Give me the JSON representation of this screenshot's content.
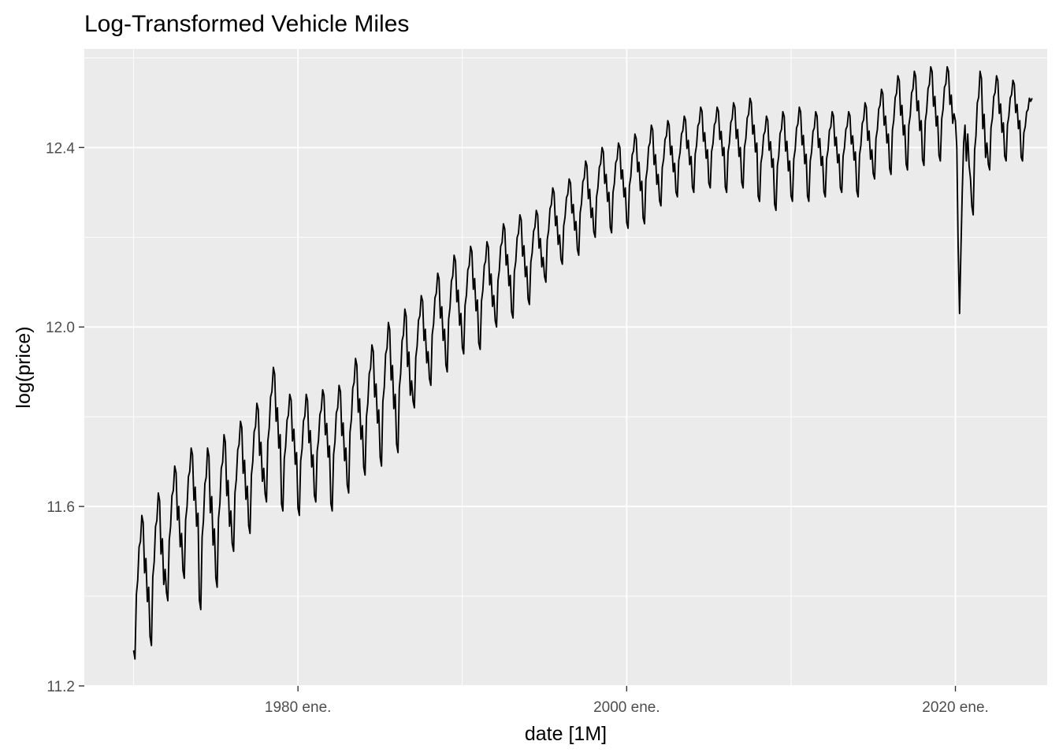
{
  "chart_data": {
    "type": "line",
    "title": "Log-Transformed Vehicle Miles",
    "xlabel": "date [1M]",
    "ylabel": "log(price)",
    "x_tick_labels": [
      "1980 ene.",
      "2000 ene.",
      "2020 ene."
    ],
    "x_tick_years": [
      1980,
      2000,
      2020
    ],
    "y_ticks": [
      11.2,
      11.6,
      12.0,
      12.4
    ],
    "y_tick_labels": [
      "11.2",
      "11.6",
      "12.0",
      "12.4"
    ],
    "xlim": [
      "1967-01",
      "2025-08"
    ],
    "ylim": [
      11.2,
      12.62
    ],
    "grid": true,
    "background": "#ebebeb",
    "line_color": "#000000",
    "series": [
      {
        "x_start": "1970-01",
        "frequency": "monthly",
        "annual_peak": [
          [
            1970,
            11.58
          ],
          [
            1971,
            11.63
          ],
          [
            1972,
            11.69
          ],
          [
            1973,
            11.73
          ],
          [
            1974,
            11.73
          ],
          [
            1975,
            11.76
          ],
          [
            1976,
            11.79
          ],
          [
            1977,
            11.83
          ],
          [
            1978,
            11.91
          ],
          [
            1979,
            11.85
          ],
          [
            1980,
            11.85
          ],
          [
            1981,
            11.86
          ],
          [
            1982,
            11.87
          ],
          [
            1983,
            11.93
          ],
          [
            1984,
            11.96
          ],
          [
            1985,
            12.01
          ],
          [
            1986,
            12.04
          ],
          [
            1987,
            12.07
          ],
          [
            1988,
            12.12
          ],
          [
            1989,
            12.16
          ],
          [
            1990,
            12.18
          ],
          [
            1991,
            12.19
          ],
          [
            1992,
            12.23
          ],
          [
            1993,
            12.25
          ],
          [
            1994,
            12.26
          ],
          [
            1995,
            12.31
          ],
          [
            1996,
            12.33
          ],
          [
            1997,
            12.37
          ],
          [
            1998,
            12.4
          ],
          [
            1999,
            12.41
          ],
          [
            2000,
            12.43
          ],
          [
            2001,
            12.45
          ],
          [
            2002,
            12.46
          ],
          [
            2003,
            12.47
          ],
          [
            2004,
            12.49
          ],
          [
            2005,
            12.49
          ],
          [
            2006,
            12.5
          ],
          [
            2007,
            12.51
          ],
          [
            2008,
            12.47
          ],
          [
            2009,
            12.48
          ],
          [
            2010,
            12.49
          ],
          [
            2011,
            12.48
          ],
          [
            2012,
            12.48
          ],
          [
            2013,
            12.48
          ],
          [
            2014,
            12.5
          ],
          [
            2015,
            12.53
          ],
          [
            2016,
            12.56
          ],
          [
            2017,
            12.57
          ],
          [
            2018,
            12.58
          ],
          [
            2019,
            12.58
          ],
          [
            2020,
            12.49
          ],
          [
            2021,
            12.57
          ],
          [
            2022,
            12.56
          ],
          [
            2023,
            12.55
          ],
          [
            2024,
            12.51
          ]
        ],
        "annual_trough": [
          [
            1970,
            11.26
          ],
          [
            1971,
            11.29
          ],
          [
            1972,
            11.39
          ],
          [
            1973,
            11.44
          ],
          [
            1974,
            11.37
          ],
          [
            1975,
            11.42
          ],
          [
            1976,
            11.5
          ],
          [
            1977,
            11.54
          ],
          [
            1978,
            11.61
          ],
          [
            1979,
            11.59
          ],
          [
            1980,
            11.58
          ],
          [
            1981,
            11.61
          ],
          [
            1982,
            11.59
          ],
          [
            1983,
            11.63
          ],
          [
            1984,
            11.67
          ],
          [
            1985,
            11.69
          ],
          [
            1986,
            11.72
          ],
          [
            1987,
            11.82
          ],
          [
            1988,
            11.87
          ],
          [
            1989,
            11.9
          ],
          [
            1990,
            11.94
          ],
          [
            1991,
            11.95
          ],
          [
            1992,
            12.0
          ],
          [
            1993,
            12.02
          ],
          [
            1994,
            12.05
          ],
          [
            1995,
            12.1
          ],
          [
            1996,
            12.14
          ],
          [
            1997,
            12.16
          ],
          [
            1998,
            12.2
          ],
          [
            1999,
            12.21
          ],
          [
            2000,
            12.22
          ],
          [
            2001,
            12.23
          ],
          [
            2002,
            12.27
          ],
          [
            2003,
            12.29
          ],
          [
            2004,
            12.3
          ],
          [
            2005,
            12.31
          ],
          [
            2006,
            12.3
          ],
          [
            2007,
            12.31
          ],
          [
            2008,
            12.28
          ],
          [
            2009,
            12.26
          ],
          [
            2010,
            12.28
          ],
          [
            2011,
            12.28
          ],
          [
            2012,
            12.29
          ],
          [
            2013,
            12.3
          ],
          [
            2014,
            12.29
          ],
          [
            2015,
            12.33
          ],
          [
            2016,
            12.34
          ],
          [
            2017,
            12.35
          ],
          [
            2018,
            12.36
          ],
          [
            2019,
            12.37
          ],
          [
            2020,
            12.03
          ],
          [
            2021,
            12.25
          ],
          [
            2022,
            12.35
          ],
          [
            2023,
            12.37
          ],
          [
            2024,
            12.37
          ]
        ],
        "notable_points": [
          {
            "x": "2020-04",
            "y": 12.03
          },
          {
            "x": "2024-09",
            "y": 12.51
          }
        ]
      }
    ]
  }
}
